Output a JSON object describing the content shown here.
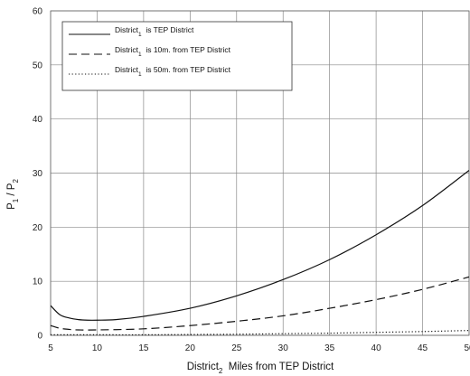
{
  "chart_data": {
    "type": "line",
    "xlabel": {
      "pre": "District",
      "sub": "2",
      "post": "  Miles from TEP District"
    },
    "ylabel": {
      "p1": "P",
      "s1": "1",
      "mid": " / P",
      "s2": "2"
    },
    "xlim": [
      5,
      50
    ],
    "ylim": [
      0,
      60
    ],
    "x_ticks": [
      "5",
      "10",
      "15",
      "20",
      "25",
      "30",
      "35",
      "40",
      "45",
      "50"
    ],
    "y_ticks": [
      "0",
      "10",
      "20",
      "30",
      "40",
      "50",
      "60"
    ],
    "grid": true,
    "legend_position": "top-left",
    "series": [
      {
        "legend": {
          "pre": "District",
          "sub": "1",
          "post": "  is TEP District"
        },
        "style": "solid",
        "x": [
          5,
          6,
          7,
          8,
          9,
          10,
          12,
          15,
          20,
          25,
          30,
          35,
          40,
          45,
          50
        ],
        "y": [
          5.5,
          3.8,
          3.2,
          2.9,
          2.8,
          2.8,
          2.9,
          3.5,
          5.0,
          7.3,
          10.3,
          14.0,
          18.6,
          24.0,
          30.5
        ]
      },
      {
        "legend": {
          "pre": "District",
          "sub": "1",
          "post": "  is 10m. from TEP District"
        },
        "style": "dashed",
        "x": [
          5,
          6,
          7,
          8,
          10,
          15,
          20,
          25,
          30,
          35,
          40,
          45,
          50
        ],
        "y": [
          1.8,
          1.3,
          1.1,
          1.0,
          1.0,
          1.2,
          1.8,
          2.6,
          3.6,
          5.0,
          6.6,
          8.5,
          10.8
        ]
      },
      {
        "legend": {
          "pre": "District",
          "sub": "1",
          "post": "  is 50m. from TEP District"
        },
        "style": "dotted",
        "x": [
          5,
          10,
          15,
          20,
          25,
          30,
          35,
          40,
          45,
          50
        ],
        "y": [
          0.1,
          0.1,
          0.1,
          0.15,
          0.2,
          0.3,
          0.4,
          0.55,
          0.7,
          0.9
        ]
      }
    ]
  }
}
